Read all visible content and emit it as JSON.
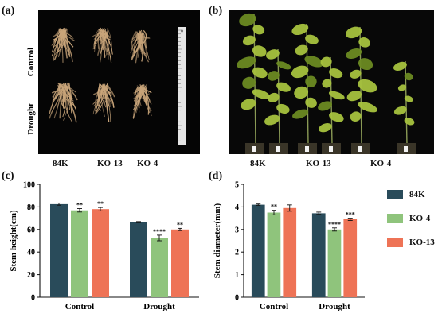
{
  "panels": {
    "a": {
      "letter": "(a)",
      "row_labels": [
        "Control",
        "Drought"
      ],
      "captions": [
        "84K",
        "KO-13",
        "KO-4"
      ],
      "photo_bg": "#050505",
      "root_color": "#c9a57a"
    },
    "b": {
      "letter": "(b)",
      "captions": [
        "84K",
        "KO-13",
        "KO-4"
      ],
      "photo_bg": "#080808",
      "leaf_color": "#a7c23e",
      "leaf_dark": "#6c8a22"
    },
    "c": {
      "letter": "(c)"
    },
    "d": {
      "letter": "(d)"
    }
  },
  "legend": {
    "entries": [
      {
        "name": "84K",
        "color": "#294b5a"
      },
      {
        "name": "KO-4",
        "color": "#8fc47c"
      },
      {
        "name": "KO-13",
        "color": "#ee7356"
      }
    ]
  },
  "chart_data": [
    {
      "type": "bar",
      "panel": "c",
      "categories": [
        "Control",
        "Drought"
      ],
      "ylabel": "Stem height(cm)",
      "xlabel": "",
      "ylim": [
        0,
        100
      ],
      "yticks": [
        0,
        20,
        40,
        60,
        80,
        100
      ],
      "grid": false,
      "series": [
        {
          "name": "84K",
          "values": [
            82.5,
            66.5
          ],
          "errors": [
            1.0,
            0.5
          ],
          "signif": [
            "",
            ""
          ]
        },
        {
          "name": "KO-4",
          "values": [
            77,
            52.5
          ],
          "errors": [
            1.5,
            2.5
          ],
          "signif": [
            "**",
            "****"
          ]
        },
        {
          "name": "KO-13",
          "values": [
            78,
            60
          ],
          "errors": [
            1.5,
            1.0
          ],
          "signif": [
            "**",
            "**"
          ]
        }
      ]
    },
    {
      "type": "bar",
      "panel": "d",
      "categories": [
        "Control",
        "Drought"
      ],
      "ylabel": "Stem diameter(mm)",
      "xlabel": "",
      "ylim": [
        0,
        5
      ],
      "yticks": [
        0,
        1,
        2,
        3,
        4,
        5
      ],
      "grid": false,
      "series": [
        {
          "name": "84K",
          "values": [
            4.1,
            3.72
          ],
          "errors": [
            0.03,
            0.05
          ],
          "signif": [
            "",
            ""
          ]
        },
        {
          "name": "KO-4",
          "values": [
            3.75,
            3.0
          ],
          "errors": [
            0.1,
            0.07
          ],
          "signif": [
            "**",
            "****"
          ]
        },
        {
          "name": "KO-13",
          "values": [
            3.95,
            3.45
          ],
          "errors": [
            0.14,
            0.05
          ],
          "signif": [
            "",
            "***"
          ]
        }
      ]
    }
  ]
}
